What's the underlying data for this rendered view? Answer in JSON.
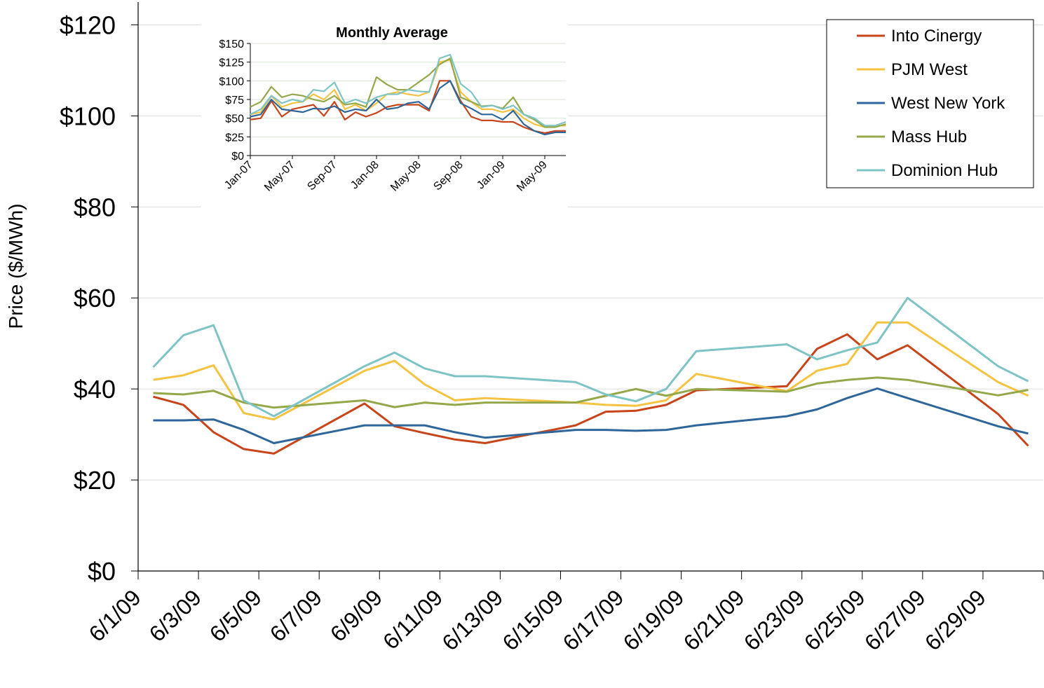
{
  "chart_data": [
    {
      "type": "line",
      "y_label": "Price ($/MWh)",
      "x": [
        "6/1/09",
        "6/2/09",
        "6/3/09",
        "6/4/09",
        "6/5/09",
        "6/8/09",
        "6/9/09",
        "6/10/09",
        "6/11/09",
        "6/12/09",
        "6/15/09",
        "6/16/09",
        "6/17/09",
        "6/18/09",
        "6/19/09",
        "6/22/09",
        "6/23/09",
        "6/24/09",
        "6/25/09",
        "6/26/09",
        "6/29/09",
        "6/30/09"
      ],
      "xlim": [
        "6/1/09",
        "6/30/09"
      ],
      "xticks": [
        "6/1/09",
        "6/3/09",
        "6/5/09",
        "6/7/09",
        "6/9/09",
        "6/11/09",
        "6/13/09",
        "6/15/09",
        "6/17/09",
        "6/19/09",
        "6/21/09",
        "6/23/09",
        "6/25/09",
        "6/27/09",
        "6/29/09"
      ],
      "ylim": [
        0,
        125
      ],
      "yticks": [
        {
          "value": 0,
          "label": "$0"
        },
        {
          "value": 20,
          "label": "$20"
        },
        {
          "value": 40,
          "label": "$40"
        },
        {
          "value": 60,
          "label": "$60"
        },
        {
          "value": 80,
          "label": "$80"
        },
        {
          "value": 100,
          "label": "$100"
        },
        {
          "value": 120,
          "label": "$120"
        }
      ],
      "grid": true,
      "legend": "top-right",
      "series": [
        {
          "name": "Into Cinergy",
          "color": "#c8441a",
          "values": [
            38.3,
            36.5,
            30.5,
            26.8,
            25.8,
            36.8,
            31.8,
            30.3,
            28.9,
            28.1,
            32,
            35,
            35.2,
            36.5,
            39.7,
            40.6,
            48.8,
            52,
            46.5,
            49.6,
            34.5,
            27.5
          ]
        },
        {
          "name": "PJM West",
          "color": "#f5c342",
          "values": [
            42,
            43,
            45.2,
            34.7,
            33.3,
            44,
            46.2,
            41,
            37.5,
            38,
            37,
            36.5,
            36.3,
            37.5,
            43.3,
            39.5,
            44,
            45.5,
            54.6,
            54.6,
            41.5,
            38.5
          ]
        },
        {
          "name": "West New York",
          "color": "#2e6699",
          "values": [
            33.1,
            33.1,
            33.3,
            31,
            28.1,
            32,
            32,
            32,
            30.5,
            29.3,
            31,
            31,
            30.8,
            31,
            32,
            34,
            35.5,
            38,
            40.1,
            38,
            31.8,
            30.2
          ]
        },
        {
          "name": "Mass Hub",
          "color": "#94a84a",
          "values": [
            39.1,
            38.8,
            39.6,
            37,
            35.9,
            37.5,
            36,
            37,
            36.5,
            37,
            37,
            38.5,
            40,
            38.5,
            40,
            39.4,
            41.2,
            42,
            42.5,
            42,
            38.6,
            39.8
          ]
        },
        {
          "name": "Dominion Hub",
          "color": "#7fc4c4",
          "values": [
            44.8,
            51.8,
            54,
            37.5,
            34,
            45,
            48,
            44.5,
            42.8,
            42.8,
            41.5,
            38.8,
            37.3,
            40,
            48.3,
            49.8,
            46.5,
            48.5,
            50.2,
            60,
            45,
            41.7
          ]
        }
      ]
    },
    {
      "type": "line",
      "title": "Monthly Average",
      "categories": [
        "Jan-07",
        null,
        null,
        null,
        "May-07",
        null,
        null,
        null,
        "Sep-07",
        null,
        null,
        null,
        "Jan-08",
        null,
        null,
        null,
        "May-08",
        null,
        null,
        null,
        "Sep-08",
        null,
        null,
        null,
        "Jan-09",
        null,
        null,
        null,
        "May-09",
        null,
        null
      ],
      "ylim": [
        0,
        150
      ],
      "yticks": [
        {
          "value": 0,
          "label": "$0"
        },
        {
          "value": 25,
          "label": "$25"
        },
        {
          "value": 50,
          "label": "$50"
        },
        {
          "value": 75,
          "label": "$75"
        },
        {
          "value": 100,
          "label": "$100"
        },
        {
          "value": 125,
          "label": "$125"
        },
        {
          "value": 150,
          "label": "$150"
        }
      ],
      "grid": true,
      "series": [
        {
          "color": "#c8441a",
          "values": [
            48,
            50,
            73,
            52,
            62,
            65,
            68,
            53,
            72,
            48,
            58,
            52,
            57,
            65,
            68,
            68,
            68,
            60,
            100,
            100,
            73,
            52,
            47,
            47,
            45,
            45,
            38,
            33,
            30,
            33,
            33
          ]
        },
        {
          "color": "#f5c342",
          "values": [
            55,
            58,
            80,
            65,
            70,
            72,
            82,
            75,
            88,
            62,
            68,
            60,
            70,
            82,
            85,
            82,
            80,
            85,
            125,
            128,
            85,
            72,
            62,
            62,
            58,
            62,
            50,
            42,
            38,
            40,
            40
          ]
        },
        {
          "color": "#2e6699",
          "values": [
            52,
            55,
            75,
            62,
            60,
            58,
            63,
            62,
            66,
            58,
            62,
            60,
            75,
            62,
            64,
            70,
            72,
            62,
            90,
            100,
            70,
            63,
            55,
            55,
            48,
            60,
            42,
            33,
            28,
            31,
            31
          ]
        },
        {
          "color": "#94a84a",
          "values": [
            65,
            72,
            92,
            78,
            82,
            80,
            75,
            72,
            80,
            68,
            70,
            65,
            105,
            95,
            88,
            88,
            98,
            108,
            122,
            130,
            78,
            72,
            66,
            67,
            63,
            78,
            55,
            48,
            38,
            38,
            42
          ]
        },
        {
          "color": "#7fc4c4",
          "values": [
            55,
            62,
            80,
            70,
            75,
            72,
            88,
            86,
            98,
            70,
            75,
            70,
            78,
            82,
            82,
            88,
            86,
            85,
            130,
            135,
            96,
            85,
            65,
            67,
            62,
            67,
            55,
            50,
            40,
            40,
            45
          ]
        }
      ]
    }
  ]
}
